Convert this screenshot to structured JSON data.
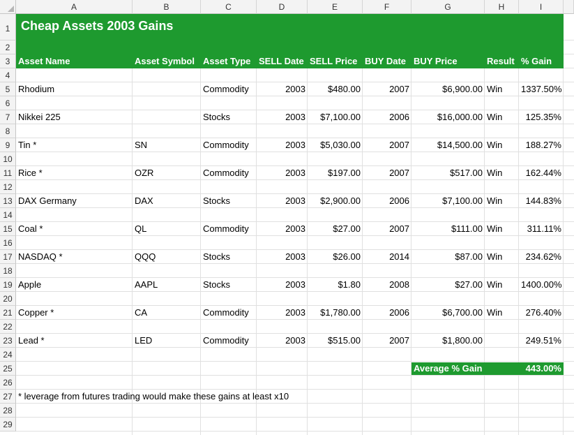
{
  "columns": [
    "A",
    "B",
    "C",
    "D",
    "E",
    "F",
    "G",
    "H",
    "I"
  ],
  "rows": [
    "1",
    "2",
    "3",
    "4",
    "5",
    "6",
    "7",
    "8",
    "9",
    "10",
    "11",
    "12",
    "13",
    "14",
    "15",
    "16",
    "17",
    "18",
    "19",
    "20",
    "21",
    "22",
    "23",
    "24",
    "25",
    "26",
    "27",
    "28",
    "29"
  ],
  "title": "Cheap Assets 2003 Gains",
  "headers": [
    "Asset Name",
    "Asset Symbol",
    "Asset Type",
    "SELL Date",
    "SELL Price",
    "BUY Date",
    "BUY Price",
    "Result",
    "% Gain"
  ],
  "assets": [
    {
      "name": "Rhodium",
      "symbol": "",
      "type": "Commodity",
      "sell_date": "2003",
      "sell_price": "$480.00",
      "buy_date": "2007",
      "buy_price": "$6,900.00",
      "result": "Win",
      "gain": "1337.50%"
    },
    {
      "name": "Nikkei 225",
      "symbol": "",
      "type": "Stocks",
      "sell_date": "2003",
      "sell_price": "$7,100.00",
      "buy_date": "2006",
      "buy_price": "$16,000.00",
      "result": "Win",
      "gain": "125.35%"
    },
    {
      "name": "Tin *",
      "symbol": "SN",
      "type": "Commodity",
      "sell_date": "2003",
      "sell_price": "$5,030.00",
      "buy_date": "2007",
      "buy_price": "$14,500.00",
      "result": "Win",
      "gain": "188.27%"
    },
    {
      "name": "Rice *",
      "symbol": "OZR",
      "type": "Commodity",
      "sell_date": "2003",
      "sell_price": "$197.00",
      "buy_date": "2007",
      "buy_price": "$517.00",
      "result": "Win",
      "gain": "162.44%"
    },
    {
      "name": "DAX Germany",
      "symbol": "DAX",
      "type": "Stocks",
      "sell_date": "2003",
      "sell_price": "$2,900.00",
      "buy_date": "2006",
      "buy_price": "$7,100.00",
      "result": "Win",
      "gain": "144.83%"
    },
    {
      "name": "Coal *",
      "symbol": "QL",
      "type": "Commodity",
      "sell_date": "2003",
      "sell_price": "$27.00",
      "buy_date": "2007",
      "buy_price": "$111.00",
      "result": "Win",
      "gain": "311.11%"
    },
    {
      "name": "NASDAQ *",
      "symbol": "QQQ",
      "type": "Stocks",
      "sell_date": "2003",
      "sell_price": "$26.00",
      "buy_date": "2014",
      "buy_price": "$87.00",
      "result": "Win",
      "gain": "234.62%"
    },
    {
      "name": "Apple",
      "symbol": "AAPL",
      "type": "Stocks",
      "sell_date": "2003",
      "sell_price": "$1.80",
      "buy_date": "2008",
      "buy_price": "$27.00",
      "result": "Win",
      "gain": "1400.00%"
    },
    {
      "name": "Copper *",
      "symbol": "CA",
      "type": "Commodity",
      "sell_date": "2003",
      "sell_price": "$1,780.00",
      "buy_date": "2006",
      "buy_price": "$6,700.00",
      "result": "Win",
      "gain": "276.40%"
    },
    {
      "name": "Lead *",
      "symbol": "LED",
      "type": "Commodity",
      "sell_date": "2003",
      "sell_price": "$515.00",
      "buy_date": "2007",
      "buy_price": "$1,800.00",
      "result": "",
      "gain": "249.51%"
    }
  ],
  "average": {
    "label": "Average % Gain",
    "value": "443.00%"
  },
  "footnote": "* leverage from futures trading would make these gains at least x10",
  "colors": {
    "header_green": "#1e9a2f",
    "header_text": "#ffffff"
  }
}
